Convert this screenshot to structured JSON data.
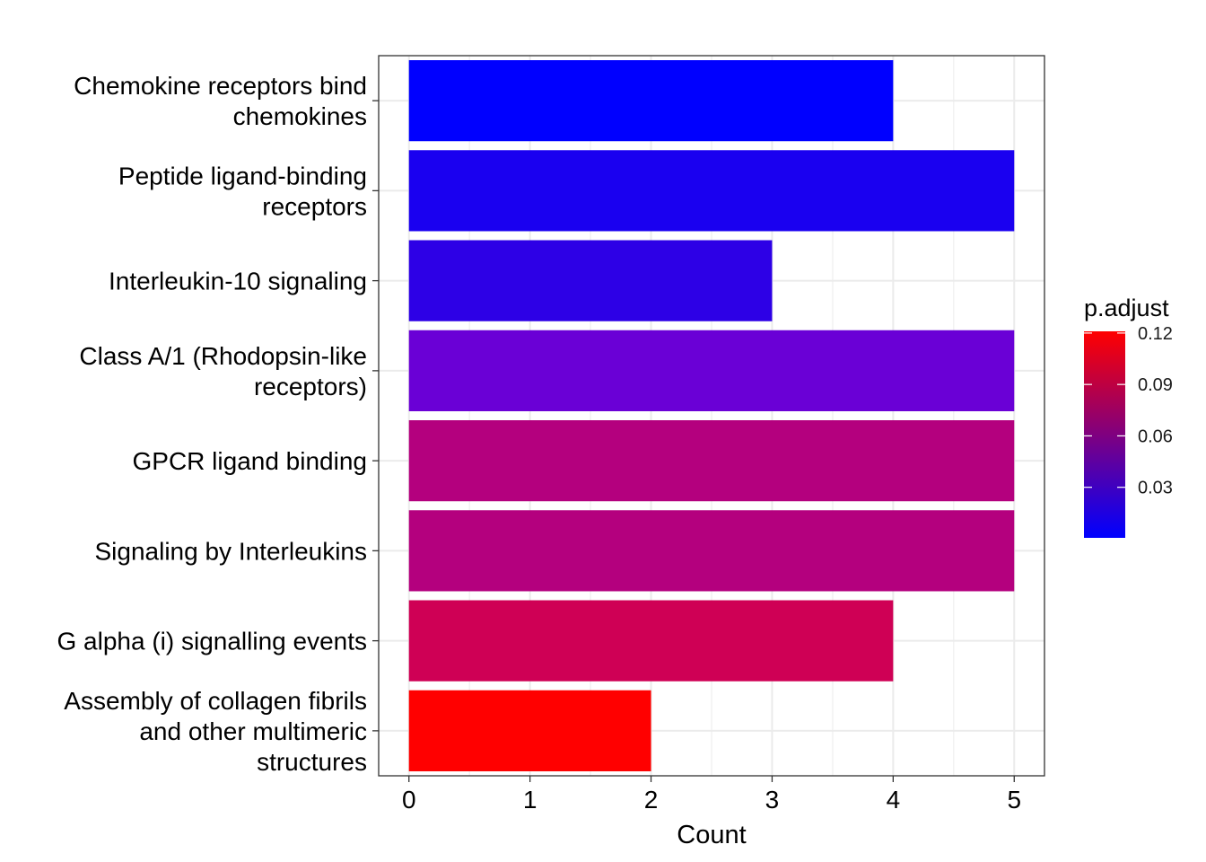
{
  "chart_data": {
    "type": "bar",
    "orientation": "horizontal",
    "categories": [
      "Chemokine receptors bind chemokines",
      "Peptide ligand-binding receptors",
      "Interleukin-10 signaling",
      "Class A/1 (Rhodopsin-like receptors)",
      "GPCR ligand binding",
      "Signaling by Interleukins",
      "G alpha (i) signalling events",
      "Assembly of collagen fibrils and other multimeric structures"
    ],
    "category_label_lines": [
      [
        "Chemokine receptors bind",
        "chemokines"
      ],
      [
        "Peptide ligand-binding",
        "receptors"
      ],
      [
        "Interleukin-10 signaling"
      ],
      [
        "Class A/1 (Rhodopsin-like",
        "receptors)"
      ],
      [
        "GPCR ligand binding"
      ],
      [
        "Signaling by Interleukins"
      ],
      [
        "G alpha (i) signalling events"
      ],
      [
        "Assembly of collagen fibrils",
        "and other multimeric",
        "structures"
      ]
    ],
    "values": [
      4,
      5,
      3,
      5,
      5,
      5,
      4,
      2
    ],
    "fill_colors": [
      "#0000FF",
      "#1A00F0",
      "#2D00E6",
      "#6A00D6",
      "#B4007E",
      "#B4007E",
      "#CF0055",
      "#FF0000"
    ],
    "xlabel": "Count",
    "ylabel": "",
    "xlim": [
      -0.25,
      5.25
    ],
    "xticks": [
      "0",
      "1",
      "2",
      "3",
      "4",
      "5"
    ],
    "grid": true,
    "legend": {
      "title": "p.adjust",
      "position": "right",
      "gradient_low_color": "#0000FF",
      "gradient_high_color": "#FF0000",
      "range": [
        0.0005,
        0.121
      ],
      "ticks": [
        "0.03",
        "0.06",
        "0.09",
        "0.12"
      ]
    }
  }
}
